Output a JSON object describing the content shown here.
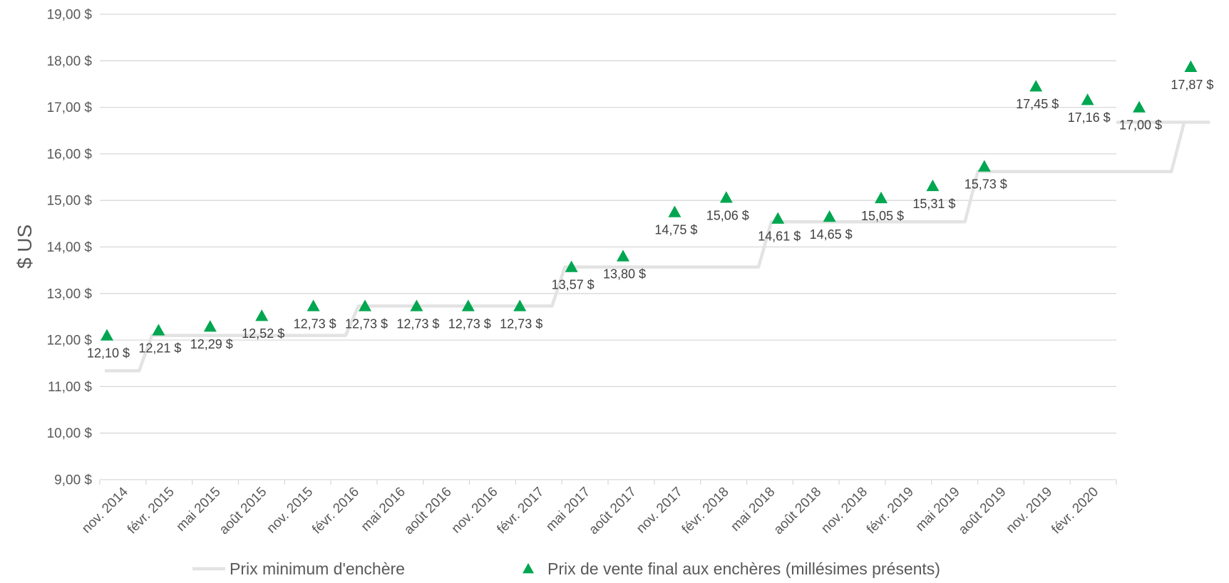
{
  "chart_data": {
    "type": "line",
    "ylabel": "$ US",
    "ylim": [
      9,
      19
    ],
    "y_ticks": [
      "9,00 $",
      "10,00 $",
      "11,00 $",
      "12,00 $",
      "13,00 $",
      "14,00 $",
      "15,00 $",
      "16,00 $",
      "17,00 $",
      "18,00 $",
      "19,00 $"
    ],
    "categories": [
      "nov. 2014",
      "févr. 2015",
      "mai 2015",
      "août 2015",
      "nov. 2015",
      "févr. 2016",
      "mai 2016",
      "août 2016",
      "nov. 2016",
      "févr. 2017",
      "mai 2017",
      "août 2017",
      "nov. 2017",
      "févr. 2018",
      "mai 2018",
      "août 2018",
      "nov. 2018",
      "févr. 2019",
      "mai 2019",
      "août 2019",
      "nov. 2019",
      "févr. 2020"
    ],
    "grid": true,
    "legend_position": "bottom",
    "series": [
      {
        "name": "Prix minimum d'enchère",
        "style": "step-line",
        "color": "#e3e3e3",
        "values": [
          11.34,
          12.1,
          12.1,
          12.1,
          12.1,
          12.73,
          12.73,
          12.73,
          12.73,
          13.57,
          13.57,
          13.57,
          13.57,
          14.54,
          14.54,
          14.54,
          14.54,
          15.62,
          15.62,
          15.62,
          15.62,
          16.68
        ]
      },
      {
        "name": "Prix de vente final aux enchères (millésimes présents)",
        "style": "triangle-markers",
        "color": "#00a650",
        "values": [
          12.1,
          12.21,
          12.29,
          12.52,
          12.73,
          12.73,
          12.73,
          12.73,
          12.73,
          13.57,
          13.8,
          14.75,
          15.06,
          14.61,
          14.65,
          15.05,
          15.31,
          15.73,
          17.45,
          17.16,
          17.0,
          17.87
        ],
        "labels": [
          "12,10 $",
          "12,21 $",
          "12,29 $",
          "12,52 $",
          "12,73 $",
          "12,73 $",
          "12,73 $",
          "12,73 $",
          "12,73 $",
          "13,57 $",
          "13,80 $",
          "14,75 $",
          "15,06 $",
          "14,61 $",
          "14,65 $",
          "15,05 $",
          "15,31 $",
          "15,73 $",
          "17,45 $",
          "17,16 $",
          "17,00 $",
          "17,87 $"
        ]
      }
    ]
  }
}
